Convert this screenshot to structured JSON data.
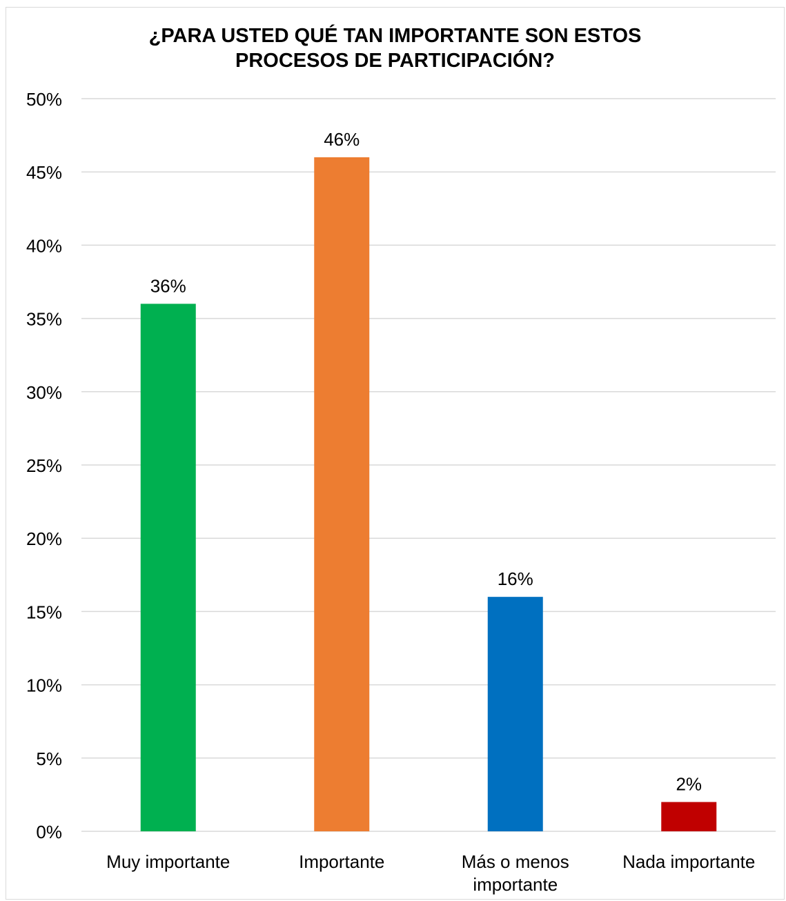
{
  "chart_data": {
    "type": "bar",
    "title_lines": [
      "¿PARA USTED QUÉ TAN IMPORTANTE SON ESTOS",
      "PROCESOS DE PARTICIPACIÓN?"
    ],
    "categories": [
      [
        "Muy importante"
      ],
      [
        "Importante"
      ],
      [
        "Más o menos",
        "importante"
      ],
      [
        "Nada importante"
      ]
    ],
    "values": [
      36,
      46,
      16,
      2
    ],
    "data_labels": [
      "36%",
      "46%",
      "16%",
      "2%"
    ],
    "colors": [
      "#00B050",
      "#ED7D31",
      "#0070C0",
      "#C00000"
    ],
    "ylim": [
      0,
      50
    ],
    "yticks": [
      0,
      5,
      10,
      15,
      20,
      25,
      30,
      35,
      40,
      45,
      50
    ],
    "ytick_labels": [
      "0%",
      "5%",
      "10%",
      "15%",
      "20%",
      "25%",
      "30%",
      "35%",
      "40%",
      "45%",
      "50%"
    ],
    "grid": true,
    "gridline_color": "#d9d9d9",
    "legend": false
  }
}
